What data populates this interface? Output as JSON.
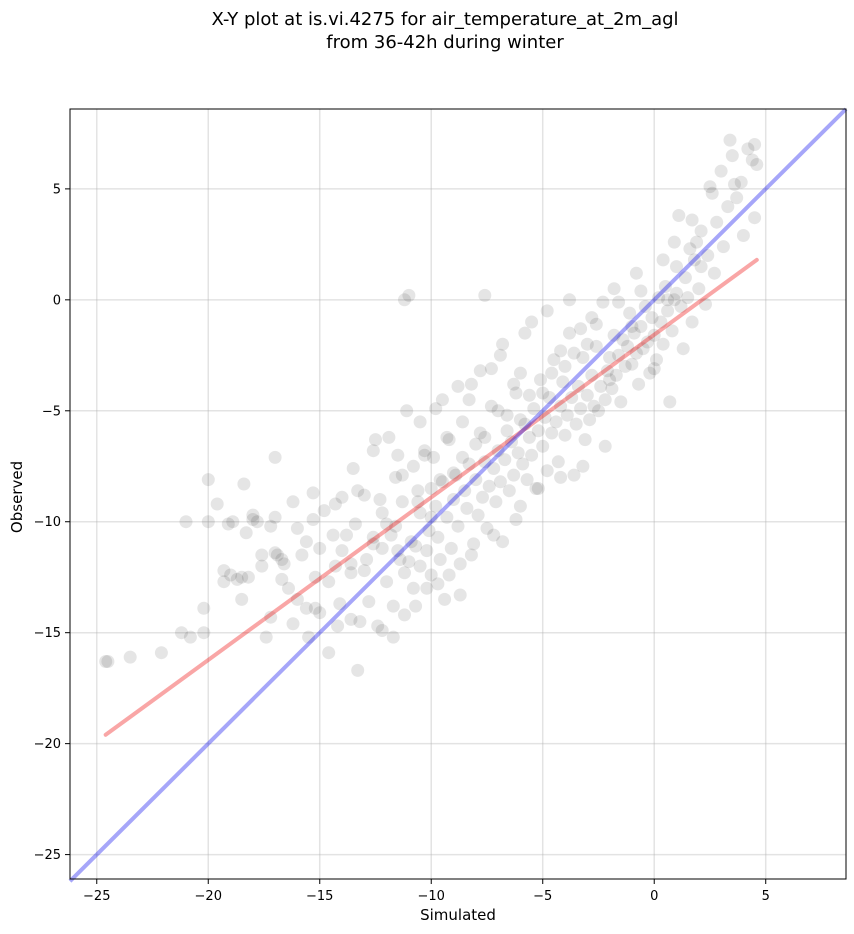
{
  "chart_data": {
    "type": "scatter",
    "title_line1": "X-Y plot at is.vi.4275 for air_temperature_at_2m_agl",
    "title_line2": "from 36-42h during winter",
    "xlabel": "Simulated",
    "ylabel": "Observed",
    "xlim": [
      -26.2,
      8.6
    ],
    "ylim": [
      -26.1,
      8.6
    ],
    "xticks": [
      -25,
      -20,
      -15,
      -10,
      -5,
      0,
      5
    ],
    "yticks": [
      -25,
      -20,
      -15,
      -10,
      -5,
      0,
      5
    ],
    "xtick_labels": [
      "−25",
      "−20",
      "−15",
      "−10",
      "−5",
      "0",
      "5"
    ],
    "ytick_labels": [
      "−25",
      "−20",
      "−15",
      "−10",
      "−5",
      "0",
      "5"
    ],
    "grid": true,
    "colors": {
      "points": "#000000",
      "identity_line": "#0000ee",
      "fit_line": "#ee0000",
      "grid": "#b0b0b0"
    },
    "identity_line": {
      "x": [
        -26.2,
        8.6
      ],
      "y": [
        -26.2,
        8.6
      ]
    },
    "fit_line": {
      "x": [
        -24.6,
        4.6
      ],
      "y": [
        -19.6,
        1.8
      ]
    },
    "points": [
      [
        -24.6,
        -16.3
      ],
      [
        -24.5,
        -16.3
      ],
      [
        -23.5,
        -16.1
      ],
      [
        -22.1,
        -15.9
      ],
      [
        -21.2,
        -15.0
      ],
      [
        -21.0,
        -10.0
      ],
      [
        -20.8,
        -15.2
      ],
      [
        -20.2,
        -15.0
      ],
      [
        -20.2,
        -13.9
      ],
      [
        -20.0,
        -8.1
      ],
      [
        -19.6,
        -9.2
      ],
      [
        -19.3,
        -12.2
      ],
      [
        -19.3,
        -12.7
      ],
      [
        -19.1,
        -10.1
      ],
      [
        -18.9,
        -10.0
      ],
      [
        -18.7,
        -12.6
      ],
      [
        -18.5,
        -12.5
      ],
      [
        -18.5,
        -13.5
      ],
      [
        -18.4,
        -8.3
      ],
      [
        -18.3,
        -10.5
      ],
      [
        -18.2,
        -12.5
      ],
      [
        -18.0,
        -9.7
      ],
      [
        -17.8,
        -10.0
      ],
      [
        -17.6,
        -12.0
      ],
      [
        -17.4,
        -15.2
      ],
      [
        -17.2,
        -10.2
      ],
      [
        -17.0,
        -7.1
      ],
      [
        -17.0,
        -9.8
      ],
      [
        -16.9,
        -11.5
      ],
      [
        -16.7,
        -11.7
      ],
      [
        -16.7,
        -12.6
      ],
      [
        -16.4,
        -13.0
      ],
      [
        -16.2,
        -9.1
      ],
      [
        -16.0,
        -10.3
      ],
      [
        -15.8,
        -11.5
      ],
      [
        -15.6,
        -13.9
      ],
      [
        -15.5,
        -15.2
      ],
      [
        -15.3,
        -9.9
      ],
      [
        -15.2,
        -12.5
      ],
      [
        -15.0,
        -14.1
      ],
      [
        -14.8,
        -9.5
      ],
      [
        -14.6,
        -15.9
      ],
      [
        -14.4,
        -10.6
      ],
      [
        -14.3,
        -12.0
      ],
      [
        -14.1,
        -13.7
      ],
      [
        -14.0,
        -8.9
      ],
      [
        -13.8,
        -10.6
      ],
      [
        -13.6,
        -14.4
      ],
      [
        -13.6,
        -12.3
      ],
      [
        -13.5,
        -7.6
      ],
      [
        -13.4,
        -10.1
      ],
      [
        -13.3,
        -16.7
      ],
      [
        -13.0,
        -8.8
      ],
      [
        -12.9,
        -11.7
      ],
      [
        -12.8,
        -13.6
      ],
      [
        -12.6,
        -10.7
      ],
      [
        -12.6,
        -6.8
      ],
      [
        -12.4,
        -14.7
      ],
      [
        -12.2,
        -9.6
      ],
      [
        -12.2,
        -11.2
      ],
      [
        -12.0,
        -12.7
      ],
      [
        -11.9,
        -6.2
      ],
      [
        -11.8,
        -10.6
      ],
      [
        -11.7,
        -13.8
      ],
      [
        -11.6,
        -8.0
      ],
      [
        -11.5,
        -11.3
      ],
      [
        -11.4,
        -11.7
      ],
      [
        -11.3,
        -9.1
      ],
      [
        -11.2,
        -12.3
      ],
      [
        -11.2,
        0.0
      ],
      [
        -11.0,
        0.2
      ],
      [
        -11.1,
        -5.0
      ],
      [
        -10.9,
        -10.9
      ],
      [
        -10.8,
        -13.0
      ],
      [
        -10.8,
        -7.5
      ],
      [
        -10.7,
        -11.1
      ],
      [
        -10.6,
        -8.6
      ],
      [
        -10.5,
        -9.6
      ],
      [
        -10.5,
        -12.0
      ],
      [
        -10.3,
        -6.8
      ],
      [
        -10.2,
        -11.3
      ],
      [
        -10.1,
        -10.4
      ],
      [
        -10.0,
        -8.5
      ],
      [
        -10.0,
        -12.4
      ],
      [
        -9.9,
        -7.1
      ],
      [
        -9.8,
        -9.3
      ],
      [
        -9.7,
        -10.7
      ],
      [
        -9.6,
        -11.7
      ],
      [
        -9.5,
        -4.5
      ],
      [
        -9.5,
        -8.2
      ],
      [
        -9.4,
        -13.5
      ],
      [
        -9.3,
        -9.8
      ],
      [
        -9.2,
        -6.3
      ],
      [
        -9.1,
        -11.2
      ],
      [
        -9.0,
        -9.0
      ],
      [
        -8.9,
        -7.9
      ],
      [
        -8.8,
        -10.2
      ],
      [
        -8.7,
        -13.3
      ],
      [
        -8.6,
        -5.5
      ],
      [
        -8.5,
        -8.6
      ],
      [
        -8.4,
        -9.4
      ],
      [
        -8.3,
        -7.4
      ],
      [
        -8.2,
        -3.8
      ],
      [
        -8.1,
        -11.0
      ],
      [
        -8.0,
        -8.1
      ],
      [
        -7.9,
        -9.7
      ],
      [
        -7.8,
        -6.0
      ],
      [
        -7.7,
        -8.9
      ],
      [
        -7.6,
        0.2
      ],
      [
        -7.6,
        -7.3
      ],
      [
        -7.5,
        -10.3
      ],
      [
        -7.4,
        -8.4
      ],
      [
        -7.3,
        -4.8
      ],
      [
        -7.2,
        -7.6
      ],
      [
        -7.1,
        -9.1
      ],
      [
        -7.0,
        -6.8
      ],
      [
        -6.9,
        -2.5
      ],
      [
        -6.9,
        -8.2
      ],
      [
        -6.8,
        -10.9
      ],
      [
        -6.7,
        -7.2
      ],
      [
        -6.6,
        -5.9
      ],
      [
        -6.5,
        -8.6
      ],
      [
        -6.4,
        -6.4
      ],
      [
        -6.3,
        -7.9
      ],
      [
        -6.2,
        -4.2
      ],
      [
        -6.1,
        -6.9
      ],
      [
        -6.0,
        -9.3
      ],
      [
        -6.0,
        -3.3
      ],
      [
        -5.9,
        -7.4
      ],
      [
        -5.8,
        -5.6
      ],
      [
        -5.7,
        -8.1
      ],
      [
        -5.6,
        -6.2
      ],
      [
        -5.5,
        -1.0
      ],
      [
        -5.5,
        -7.0
      ],
      [
        -5.4,
        -4.9
      ],
      [
        -5.3,
        -8.5
      ],
      [
        -5.2,
        -5.9
      ],
      [
        -5.1,
        -3.6
      ],
      [
        -5.0,
        -6.6
      ],
      [
        -4.9,
        -5.3
      ],
      [
        -4.8,
        -7.7
      ],
      [
        -4.7,
        -4.4
      ],
      [
        -4.6,
        -6.0
      ],
      [
        -4.5,
        -2.7
      ],
      [
        -4.4,
        -5.5
      ],
      [
        -4.3,
        -7.3
      ],
      [
        -4.2,
        -4.8
      ],
      [
        -4.1,
        -3.7
      ],
      [
        -4.0,
        -6.1
      ],
      [
        -3.9,
        -5.2
      ],
      [
        -3.8,
        -1.5
      ],
      [
        -3.7,
        -4.4
      ],
      [
        -3.6,
        -7.9
      ],
      [
        -3.5,
        -5.6
      ],
      [
        -3.4,
        -3.9
      ],
      [
        -3.3,
        -4.9
      ],
      [
        -3.2,
        -2.6
      ],
      [
        -3.1,
        -6.3
      ],
      [
        -3.0,
        -4.3
      ],
      [
        -2.9,
        -5.4
      ],
      [
        -2.8,
        -3.4
      ],
      [
        -2.7,
        -4.8
      ],
      [
        -2.6,
        -2.1
      ],
      [
        -2.5,
        -5.0
      ],
      [
        -2.4,
        -3.9
      ],
      [
        -2.3,
        -0.1
      ],
      [
        -2.2,
        -4.5
      ],
      [
        -2.1,
        -3.2
      ],
      [
        -2.0,
        -2.6
      ],
      [
        -1.9,
        -4.0
      ],
      [
        -1.8,
        -1.6
      ],
      [
        -1.7,
        -3.4
      ],
      [
        -1.6,
        -2.5
      ],
      [
        -1.5,
        -4.6
      ],
      [
        -1.4,
        -1.8
      ],
      [
        -1.3,
        -3.0
      ],
      [
        -1.2,
        -2.1
      ],
      [
        -1.1,
        -0.6
      ],
      [
        -1.0,
        -2.9
      ],
      [
        -0.9,
        -1.5
      ],
      [
        -0.8,
        -2.4
      ],
      [
        -0.7,
        -3.8
      ],
      [
        -0.6,
        -1.2
      ],
      [
        -0.5,
        -2.2
      ],
      [
        -0.4,
        -0.3
      ],
      [
        -0.3,
        -1.9
      ],
      [
        -0.2,
        -3.3
      ],
      [
        -0.1,
        -0.8
      ],
      [
        0.0,
        -1.6
      ],
      [
        0.1,
        -2.7
      ],
      [
        0.2,
        0.1
      ],
      [
        0.3,
        -1.0
      ],
      [
        0.4,
        -2.0
      ],
      [
        0.5,
        0.6
      ],
      [
        0.6,
        -0.5
      ],
      [
        0.7,
        -4.6
      ],
      [
        0.8,
        -1.4
      ],
      [
        0.9,
        0.0
      ],
      [
        1.0,
        1.5
      ],
      [
        1.1,
        3.8
      ],
      [
        1.2,
        -0.3
      ],
      [
        1.3,
        -2.2
      ],
      [
        1.4,
        1.0
      ],
      [
        1.5,
        0.1
      ],
      [
        1.6,
        2.3
      ],
      [
        1.7,
        -1.0
      ],
      [
        1.8,
        1.8
      ],
      [
        2.0,
        0.5
      ],
      [
        2.1,
        3.1
      ],
      [
        2.3,
        -0.2
      ],
      [
        2.4,
        2.0
      ],
      [
        2.6,
        4.8
      ],
      [
        2.7,
        1.2
      ],
      [
        2.8,
        3.5
      ],
      [
        3.0,
        5.8
      ],
      [
        3.1,
        2.4
      ],
      [
        3.3,
        4.2
      ],
      [
        3.4,
        7.2
      ],
      [
        3.5,
        6.5
      ],
      [
        3.7,
        4.6
      ],
      [
        3.9,
        5.3
      ],
      [
        4.0,
        2.9
      ],
      [
        4.2,
        6.8
      ],
      [
        4.4,
        6.3
      ],
      [
        4.5,
        3.7
      ],
      [
        4.5,
        7.0
      ],
      [
        4.6,
        6.1
      ],
      [
        2.1,
        1.5
      ],
      [
        1.9,
        2.6
      ],
      [
        0.0,
        -3.1
      ],
      [
        -1.0,
        -1.2
      ],
      [
        -2.0,
        -3.6
      ],
      [
        -3.0,
        -2.0
      ],
      [
        -4.0,
        -3.0
      ],
      [
        -5.0,
        -4.2
      ],
      [
        -6.0,
        -5.4
      ],
      [
        -7.0,
        -5.0
      ],
      [
        -8.0,
        -6.5
      ],
      [
        -9.0,
        -7.8
      ],
      [
        -10.0,
        -9.8
      ],
      [
        -11.0,
        -11.8
      ],
      [
        -12.0,
        -10.1
      ],
      [
        -13.0,
        -12.2
      ],
      [
        -14.0,
        -11.3
      ],
      [
        -15.0,
        -11.2
      ],
      [
        -16.0,
        -13.5
      ],
      [
        -17.0,
        -11.4
      ],
      [
        -18.0,
        -9.9
      ],
      [
        -19.0,
        -12.4
      ],
      [
        -20.0,
        -10.0
      ],
      [
        -12.5,
        -6.3
      ],
      [
        -11.5,
        -7.0
      ],
      [
        -10.5,
        -5.5
      ],
      [
        -9.8,
        -4.9
      ],
      [
        -8.8,
        -3.9
      ],
      [
        -7.8,
        -3.2
      ],
      [
        -6.8,
        -2.0
      ],
      [
        -5.8,
        -1.5
      ],
      [
        -4.8,
        -0.5
      ],
      [
        -3.8,
        0.0
      ],
      [
        -2.8,
        -0.8
      ],
      [
        -1.8,
        0.5
      ],
      [
        -0.8,
        1.2
      ],
      [
        0.4,
        1.8
      ],
      [
        0.9,
        2.6
      ],
      [
        1.7,
        3.6
      ],
      [
        2.5,
        5.1
      ],
      [
        3.6,
        5.2
      ],
      [
        -4.2,
        -2.3
      ],
      [
        -3.3,
        -1.3
      ],
      [
        -6.3,
        -3.8
      ],
      [
        -7.3,
        -3.1
      ],
      [
        -8.3,
        -4.5
      ],
      [
        -9.3,
        -6.2
      ],
      [
        -10.3,
        -7.0
      ],
      [
        -11.3,
        -7.9
      ],
      [
        -12.3,
        -9.0
      ],
      [
        -13.3,
        -8.6
      ],
      [
        -14.3,
        -9.2
      ],
      [
        -15.3,
        -8.7
      ],
      [
        -2.2,
        -6.6
      ],
      [
        -3.2,
        -7.5
      ],
      [
        -4.2,
        -8.0
      ],
      [
        -5.2,
        -8.5
      ],
      [
        -6.2,
        -9.9
      ],
      [
        -7.2,
        -10.6
      ],
      [
        -8.2,
        -11.5
      ],
      [
        -9.2,
        -12.4
      ],
      [
        -10.2,
        -13.0
      ],
      [
        -11.2,
        -14.2
      ],
      [
        -12.2,
        -14.9
      ],
      [
        -13.2,
        -14.5
      ],
      [
        -14.2,
        -14.7
      ],
      [
        -15.2,
        -13.9
      ],
      [
        -16.2,
        -14.6
      ],
      [
        -17.2,
        -14.3
      ],
      [
        -11.7,
        -15.2
      ],
      [
        -10.7,
        -13.8
      ],
      [
        -9.7,
        -12.8
      ],
      [
        -8.7,
        -11.9
      ],
      [
        -1.6,
        -0.1
      ],
      [
        -0.6,
        0.4
      ],
      [
        0.6,
        0.0
      ],
      [
        1.0,
        0.3
      ],
      [
        -2.6,
        -1.1
      ],
      [
        -3.6,
        -2.4
      ],
      [
        -4.6,
        -3.3
      ],
      [
        -5.6,
        -4.3
      ],
      [
        -6.6,
        -5.2
      ],
      [
        -7.6,
        -6.2
      ],
      [
        -8.6,
        -7.1
      ],
      [
        -9.6,
        -8.1
      ],
      [
        -10.6,
        -9.1
      ],
      [
        -11.6,
        -10.2
      ],
      [
        -12.6,
        -11.0
      ],
      [
        -13.6,
        -11.9
      ],
      [
        -14.6,
        -12.7
      ],
      [
        -15.6,
        -10.9
      ],
      [
        -16.6,
        -11.9
      ],
      [
        -17.6,
        -11.5
      ]
    ]
  }
}
